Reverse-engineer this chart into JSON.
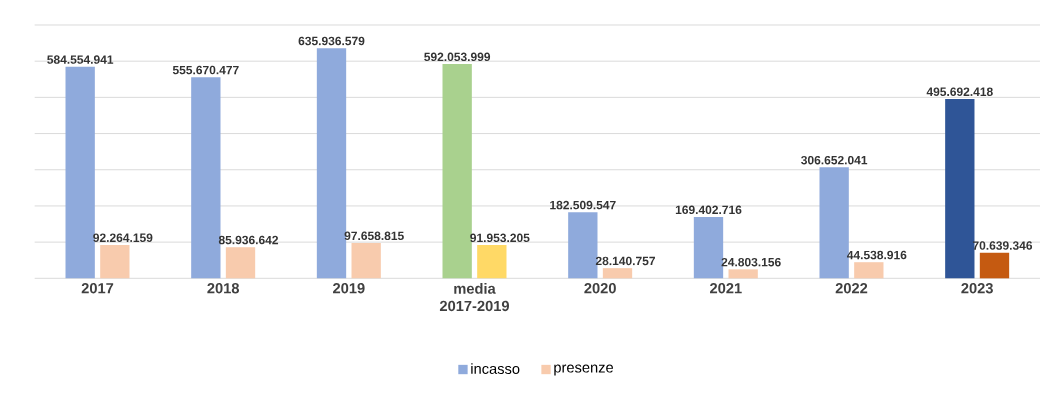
{
  "chart_data": {
    "type": "bar",
    "categories": [
      "2017",
      "2018",
      "2019",
      "media 2017-2019",
      "2020",
      "2021",
      "2022",
      "2023"
    ],
    "series": [
      {
        "name": "incasso",
        "color": "#8faadc",
        "colors": [
          "#8faadc",
          "#8faadc",
          "#8faadc",
          "#a9d18e",
          "#8faadc",
          "#8faadc",
          "#8faadc",
          "#2f5597"
        ],
        "values": [
          584554941,
          555670477,
          635936579,
          592053999,
          182509547,
          169402716,
          306652041,
          495692418
        ],
        "value_labels": [
          "584.554.941",
          "555.670.477",
          "635.936.579",
          "592.053.999",
          "182.509.547",
          "169.402.716",
          "306.652.041",
          "495.692.418"
        ]
      },
      {
        "name": "presenze",
        "color": "#f8cbad",
        "colors": [
          "#f8cbad",
          "#f8cbad",
          "#f8cbad",
          "#ffd966",
          "#f8cbad",
          "#f8cbad",
          "#f8cbad",
          "#c55a11"
        ],
        "values": [
          92264159,
          85936642,
          97658815,
          91953205,
          28140757,
          24803156,
          44538916,
          70639346
        ],
        "value_labels": [
          "92.264.159",
          "85.936.642",
          "97.658.815",
          "91.953.205",
          "28.140.757",
          "24.803.156",
          "44.538.916",
          "70.639.346"
        ]
      }
    ],
    "ylim": [
      0,
      700000000
    ],
    "yticks": [
      {
        "value": 0,
        "label": null
      },
      {
        "value": 100000000,
        "label": null
      },
      {
        "value": 200000000,
        "label": null
      },
      {
        "value": 300000000,
        "label": null
      },
      {
        "value": 400000000,
        "label": null
      },
      {
        "value": 500000000,
        "label": null
      },
      {
        "value": 600000000,
        "label": null
      },
      {
        "value": 700000000,
        "label": null
      }
    ],
    "tick_labels": "x",
    "grid": "y",
    "legend": "bottom"
  }
}
